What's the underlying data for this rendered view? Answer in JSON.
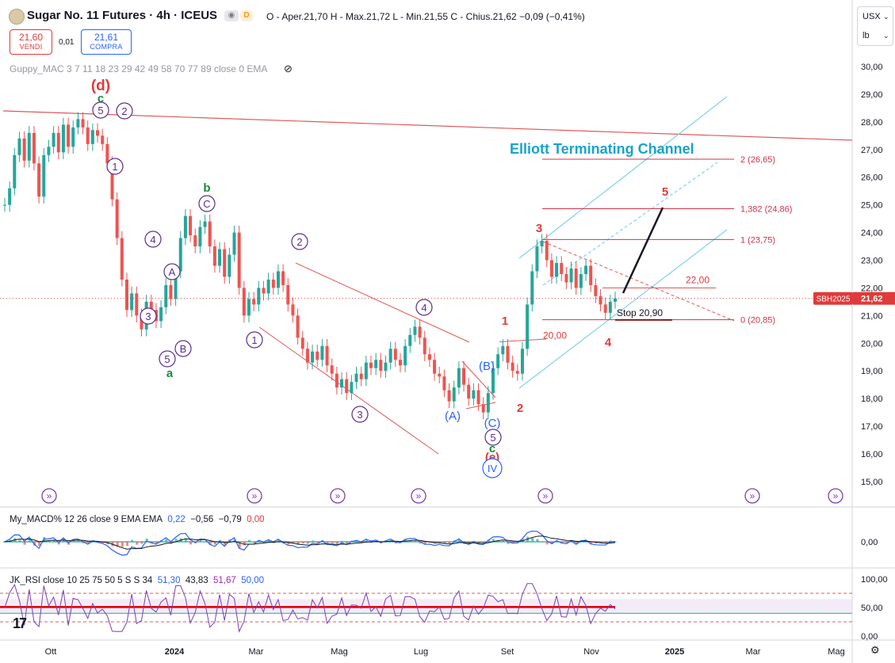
{
  "header": {
    "title": "Sugar No. 11 Futures · 4h · ICEUS",
    "exchange_badge": "D",
    "ohlc_text": "O - Aper.21,70  H - Max.21,72  L - Min.21,55  C - Chius.21,62  −0,09 (−0,41%)",
    "sell_price": "21,60",
    "sell_label": "VENDI",
    "buy_price": "21,61",
    "buy_label": "COMPRA",
    "spread": "0,01",
    "indicator_label": "Guppy_MAC 3 7 11 18 23 29 42 49 58 70 77 89 close 0 EMA",
    "currency": "USX",
    "unit": "lb"
  },
  "colors": {
    "up": "#26a69a",
    "down": "#ef5350",
    "accent": "#2962ff",
    "wave_red": "#e03a3a",
    "wave_purple": "#5b2c8f",
    "channel": "#7fd3e6",
    "green_label": "#1b8a3a"
  },
  "chart_data": [
    {
      "type": "candlestick",
      "title": "Sugar No. 11 Futures · 4h · ICEUS",
      "x_ticks": [
        "Ott",
        "2024",
        "Mar",
        "Mag",
        "Lug",
        "Set",
        "Nov",
        "2025",
        "Mar",
        "Mag"
      ],
      "y_ticks": [
        "30,00",
        "29,00",
        "28,00",
        "27,00",
        "26,00",
        "25,00",
        "24,00",
        "23,00",
        "22,00",
        "21,00",
        "20,00",
        "19,00",
        "18,00",
        "17,00",
        "16,00",
        "15,00"
      ],
      "ylim": [
        14.5,
        31.0
      ],
      "last_price": {
        "label": "SBH2025",
        "value": "21,62"
      },
      "price_path": [
        [
          0,
          25.0
        ],
        [
          1,
          25.6
        ],
        [
          2,
          26.8
        ],
        [
          3,
          27.4
        ],
        [
          4,
          26.6
        ],
        [
          5,
          27.6
        ],
        [
          6,
          26.5
        ],
        [
          7,
          25.3
        ],
        [
          8,
          26.8
        ],
        [
          9,
          27.1
        ],
        [
          10,
          27.6
        ],
        [
          11,
          26.9
        ],
        [
          12,
          27.9
        ],
        [
          13,
          27.1
        ],
        [
          14,
          27.8
        ],
        [
          15,
          28.1
        ],
        [
          16,
          27.8
        ],
        [
          17,
          27.2
        ],
        [
          18,
          27.7
        ],
        [
          19,
          27.5
        ],
        [
          20,
          27.2
        ],
        [
          21,
          26.5
        ],
        [
          22,
          25.2
        ],
        [
          23,
          23.8
        ],
        [
          24,
          22.3
        ],
        [
          25,
          21.2
        ],
        [
          26,
          21.8
        ],
        [
          27,
          21.0
        ],
        [
          28,
          20.5
        ],
        [
          29,
          21.5
        ],
        [
          30,
          21.2
        ],
        [
          31,
          20.8
        ],
        [
          32,
          21.3
        ],
        [
          33,
          22.1
        ],
        [
          34,
          21.6
        ],
        [
          35,
          22.6
        ],
        [
          36,
          23.8
        ],
        [
          37,
          24.6
        ],
        [
          38,
          23.9
        ],
        [
          39,
          23.5
        ],
        [
          40,
          24.2
        ],
        [
          41,
          24.4
        ],
        [
          42,
          23.5
        ],
        [
          43,
          22.8
        ],
        [
          44,
          23.4
        ],
        [
          45,
          22.4
        ],
        [
          46,
          23.2
        ],
        [
          47,
          24.0
        ],
        [
          48,
          22.0
        ],
        [
          49,
          21.0
        ],
        [
          50,
          21.6
        ],
        [
          51,
          21.4
        ],
        [
          52,
          22.0
        ],
        [
          53,
          21.8
        ],
        [
          54,
          22.3
        ],
        [
          55,
          22.0
        ],
        [
          56,
          22.6
        ],
        [
          57,
          22.1
        ],
        [
          58,
          21.4
        ],
        [
          59,
          21.0
        ],
        [
          60,
          20.2
        ],
        [
          61,
          19.8
        ],
        [
          62,
          19.3
        ],
        [
          63,
          19.7
        ],
        [
          64,
          19.4
        ],
        [
          65,
          19.9
        ],
        [
          66,
          19.2
        ],
        [
          67,
          18.9
        ],
        [
          68,
          18.4
        ],
        [
          69,
          18.7
        ],
        [
          70,
          18.2
        ],
        [
          71,
          18.6
        ],
        [
          72,
          18.9
        ],
        [
          73,
          18.7
        ],
        [
          74,
          19.3
        ],
        [
          75,
          19.1
        ],
        [
          76,
          19.4
        ],
        [
          77,
          19.0
        ],
        [
          78,
          19.3
        ],
        [
          79,
          19.8
        ],
        [
          80,
          19.4
        ],
        [
          81,
          19.2
        ],
        [
          82,
          19.9
        ],
        [
          83,
          20.3
        ],
        [
          84,
          20.6
        ],
        [
          85,
          20.2
        ],
        [
          86,
          19.6
        ],
        [
          87,
          19.4
        ],
        [
          88,
          18.9
        ],
        [
          89,
          18.8
        ],
        [
          90,
          18.3
        ],
        [
          91,
          17.9
        ],
        [
          92,
          18.4
        ],
        [
          93,
          19.1
        ],
        [
          94,
          18.5
        ],
        [
          95,
          18.0
        ],
        [
          96,
          18.3
        ],
        [
          97,
          17.8
        ],
        [
          98,
          17.5
        ],
        [
          99,
          18.2
        ],
        [
          100,
          19.1
        ],
        [
          101,
          19.6
        ],
        [
          102,
          19.9
        ],
        [
          103,
          19.3
        ],
        [
          104,
          19.0
        ],
        [
          105,
          18.9
        ],
        [
          106,
          19.8
        ],
        [
          107,
          21.4
        ],
        [
          108,
          22.6
        ],
        [
          109,
          23.5
        ],
        [
          110,
          23.7
        ],
        [
          111,
          23.0
        ],
        [
          112,
          22.4
        ],
        [
          113,
          22.9
        ],
        [
          114,
          22.5
        ],
        [
          115,
          22.2
        ],
        [
          116,
          22.7
        ],
        [
          117,
          22.0
        ],
        [
          118,
          22.5
        ],
        [
          119,
          22.8
        ],
        [
          120,
          22.1
        ],
        [
          121,
          21.7
        ],
        [
          122,
          21.4
        ],
        [
          123,
          21.1
        ],
        [
          124,
          21.5
        ],
        [
          125,
          21.62
        ]
      ],
      "elliott_labels": [
        {
          "text": "(d)",
          "color": "wave_red"
        },
        {
          "text": "c",
          "color": "green_label"
        },
        {
          "text": "5",
          "color": "wave_purple",
          "circled": true
        },
        {
          "text": "2",
          "color": "wave_purple",
          "circled": true
        },
        {
          "text": "1",
          "color": "wave_purple",
          "circled": true
        },
        {
          "text": "4",
          "color": "wave_purple",
          "circled": true
        },
        {
          "text": "A",
          "color": "wave_purple",
          "circled": true
        },
        {
          "text": "3",
          "color": "wave_purple",
          "circled": true
        },
        {
          "text": "B",
          "color": "wave_purple",
          "circled": true
        },
        {
          "text": "5",
          "color": "wave_purple",
          "circled": true
        },
        {
          "text": "a",
          "color": "green_label"
        },
        {
          "text": "b",
          "color": "green_label"
        },
        {
          "text": "C",
          "color": "wave_purple",
          "circled": true
        },
        {
          "text": "1",
          "color": "wave_purple",
          "circled": true
        },
        {
          "text": "2",
          "color": "wave_purple",
          "circled": true
        },
        {
          "text": "3",
          "color": "wave_purple",
          "circled": true
        },
        {
          "text": "4",
          "color": "wave_purple",
          "circled": true
        },
        {
          "text": "(A)",
          "color": "accent"
        },
        {
          "text": "(B)",
          "color": "accent"
        },
        {
          "text": "(C)",
          "color": "accent"
        },
        {
          "text": "5",
          "color": "wave_purple",
          "circled": true
        },
        {
          "text": "c",
          "color": "green_label"
        },
        {
          "text": "(e)",
          "color": "wave_red"
        },
        {
          "text": "IV",
          "color": "accent",
          "circled": true
        },
        {
          "text": "1",
          "color": "wave_red"
        },
        {
          "text": "2",
          "color": "wave_red"
        },
        {
          "text": "3",
          "color": "wave_red"
        },
        {
          "text": "4",
          "color": "wave_red"
        },
        {
          "text": "5",
          "color": "wave_red"
        }
      ],
      "annotations": {
        "channel_title": "Elliott Terminating Channel",
        "fib_levels": [
          {
            "label": "2 (26,65)",
            "value": 26.65
          },
          {
            "label": "1,382 (24,86)",
            "value": 24.86
          },
          {
            "label": "1 (23,75)",
            "value": 23.75
          },
          {
            "label": "0 (20,85)",
            "value": 20.85
          }
        ],
        "level_22": {
          "label": "22,00",
          "value": 22.0
        },
        "level_20": {
          "label": "20,00",
          "value": 20.0
        },
        "stop": {
          "label": "Stop 20,90",
          "value": 20.9
        }
      }
    },
    {
      "type": "line",
      "title": "My_MACD% 12 26 close 9 EMA EMA",
      "legend_values": [
        "0,22",
        "−0,56",
        "−0,79",
        "0,00"
      ],
      "y_ticks": [
        "0,00"
      ]
    },
    {
      "type": "line",
      "title": "JK_RSI close 10 25 75 50 5 S S 34",
      "legend_values": [
        "51,30",
        "43,83",
        "51,67",
        "50,00"
      ],
      "y_ticks": [
        "100,00",
        "50,00",
        "0,00"
      ]
    }
  ],
  "footer": {
    "tv_logo": "17"
  }
}
